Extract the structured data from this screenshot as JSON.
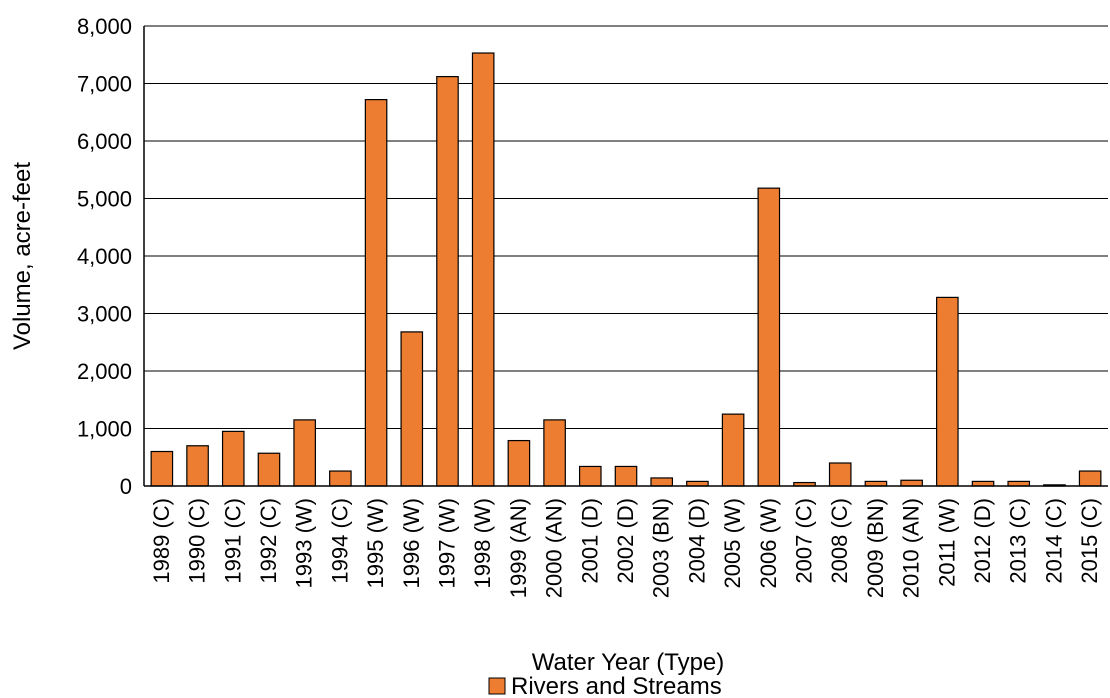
{
  "chart_data": {
    "type": "bar",
    "title": "",
    "xlabel": "Water Year (Type)",
    "ylabel": "Volume, acre-feet",
    "ylim": [
      0,
      8000
    ],
    "yticks": [
      0,
      1000,
      2000,
      3000,
      4000,
      5000,
      6000,
      7000,
      8000
    ],
    "ytick_labels": [
      "0",
      "1,000",
      "2,000",
      "3,000",
      "4,000",
      "5,000",
      "6,000",
      "7,000",
      "8,000"
    ],
    "grid": "horizontal",
    "legend_position": "bottom",
    "categories": [
      "1989 (C)",
      "1990 (C)",
      "1991 (C)",
      "1992 (C)",
      "1993 (W)",
      "1994 (C)",
      "1995 (W)",
      "1996 (W)",
      "1997 (W)",
      "1998 (W)",
      "1999 (AN)",
      "2000 (AN)",
      "2001 (D)",
      "2002 (D)",
      "2003 (BN)",
      "2004 (D)",
      "2005 (W)",
      "2006 (W)",
      "2007 (C)",
      "2008 (C)",
      "2009 (BN)",
      "2010 (AN)",
      "2011 (W)",
      "2012 (D)",
      "2013 (C)",
      "2014 (C)",
      "2015 (C)"
    ],
    "series": [
      {
        "name": "Rivers and Streams",
        "color": "#ED7D31",
        "values": [
          600,
          700,
          950,
          570,
          1150,
          260,
          6720,
          2680,
          7120,
          7530,
          790,
          1150,
          340,
          340,
          140,
          80,
          1250,
          5180,
          60,
          400,
          80,
          100,
          3280,
          80,
          80,
          20,
          260
        ]
      }
    ]
  }
}
